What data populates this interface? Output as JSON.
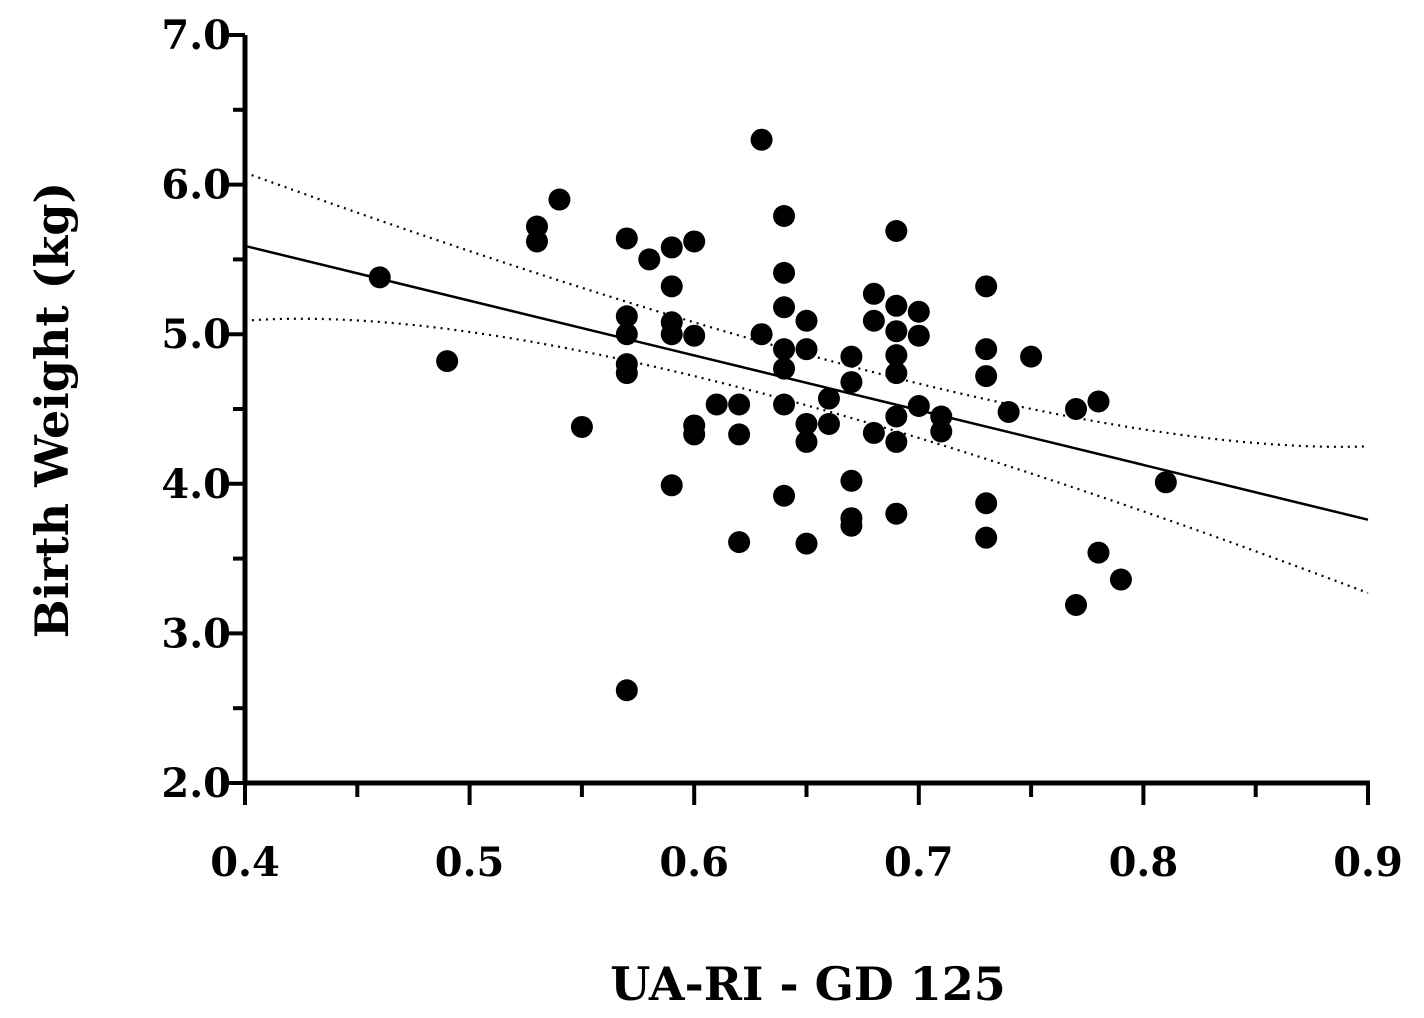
{
  "chart_data": {
    "type": "scatter",
    "xlabel": "UA-RI - GD 125",
    "ylabel": "Birth Weight (kg)",
    "xlim": [
      0.4,
      0.9
    ],
    "ylim": [
      2.0,
      7.0
    ],
    "x_ticks": [
      "0.4",
      "0.5",
      "0.6",
      "0.7",
      "0.8",
      "0.9"
    ],
    "y_ticks": [
      "2.0",
      "3.0",
      "4.0",
      "5.0",
      "6.0",
      "7.0"
    ],
    "grid": false,
    "legend": "none",
    "marker_color": "#000000",
    "series": [
      {
        "points": [
          [
            0.46,
            5.38
          ],
          [
            0.49,
            4.82
          ],
          [
            0.53,
            5.72
          ],
          [
            0.53,
            5.62
          ],
          [
            0.54,
            5.9
          ],
          [
            0.55,
            4.38
          ],
          [
            0.57,
            5.64
          ],
          [
            0.57,
            5.12
          ],
          [
            0.57,
            5.0
          ],
          [
            0.57,
            4.8
          ],
          [
            0.57,
            4.74
          ],
          [
            0.57,
            2.62
          ],
          [
            0.58,
            5.5
          ],
          [
            0.59,
            5.58
          ],
          [
            0.59,
            5.32
          ],
          [
            0.59,
            5.08
          ],
          [
            0.59,
            5.0
          ],
          [
            0.59,
            3.99
          ],
          [
            0.6,
            5.62
          ],
          [
            0.6,
            4.99
          ],
          [
            0.6,
            4.39
          ],
          [
            0.6,
            4.33
          ],
          [
            0.61,
            4.53
          ],
          [
            0.62,
            4.53
          ],
          [
            0.62,
            4.33
          ],
          [
            0.62,
            3.61
          ],
          [
            0.63,
            6.3
          ],
          [
            0.63,
            5.0
          ],
          [
            0.64,
            5.79
          ],
          [
            0.64,
            5.41
          ],
          [
            0.64,
            5.18
          ],
          [
            0.64,
            4.9
          ],
          [
            0.64,
            4.77
          ],
          [
            0.64,
            4.53
          ],
          [
            0.64,
            3.92
          ],
          [
            0.65,
            5.09
          ],
          [
            0.65,
            4.9
          ],
          [
            0.65,
            4.4
          ],
          [
            0.65,
            4.28
          ],
          [
            0.65,
            3.6
          ],
          [
            0.66,
            4.57
          ],
          [
            0.66,
            4.4
          ],
          [
            0.67,
            4.85
          ],
          [
            0.67,
            4.68
          ],
          [
            0.67,
            4.02
          ],
          [
            0.67,
            3.77
          ],
          [
            0.67,
            3.72
          ],
          [
            0.68,
            5.27
          ],
          [
            0.68,
            5.09
          ],
          [
            0.68,
            4.34
          ],
          [
            0.69,
            5.69
          ],
          [
            0.69,
            5.19
          ],
          [
            0.69,
            5.02
          ],
          [
            0.69,
            4.86
          ],
          [
            0.69,
            4.74
          ],
          [
            0.69,
            4.45
          ],
          [
            0.69,
            4.28
          ],
          [
            0.69,
            3.8
          ],
          [
            0.7,
            5.15
          ],
          [
            0.7,
            4.99
          ],
          [
            0.7,
            4.52
          ],
          [
            0.71,
            4.45
          ],
          [
            0.71,
            4.35
          ],
          [
            0.73,
            5.32
          ],
          [
            0.73,
            4.9
          ],
          [
            0.73,
            4.72
          ],
          [
            0.73,
            3.87
          ],
          [
            0.73,
            3.64
          ],
          [
            0.74,
            4.48
          ],
          [
            0.75,
            4.85
          ],
          [
            0.77,
            4.5
          ],
          [
            0.77,
            3.19
          ],
          [
            0.78,
            4.55
          ],
          [
            0.78,
            3.54
          ],
          [
            0.79,
            3.36
          ],
          [
            0.81,
            4.01
          ]
        ]
      }
    ],
    "fit_line": {
      "x": [
        0.4,
        0.9
      ],
      "y": [
        5.59,
        3.76
      ]
    },
    "ci_upper": {
      "x": [
        0.4,
        0.7,
        0.9
      ],
      "y": [
        6.08,
        4.67,
        4.25
      ]
    },
    "ci_lower": {
      "x": [
        0.4,
        0.6,
        0.9
      ],
      "y": [
        5.09,
        4.72,
        3.27
      ]
    }
  }
}
